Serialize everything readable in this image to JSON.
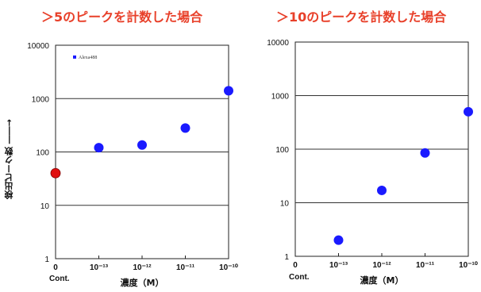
{
  "chart_data": [
    {
      "type": "scatter",
      "title": "＞5のピークを計数した場合",
      "ylabel": "検出ピーク数 ――→",
      "xlabel": "濃度（M）",
      "yscale": "log",
      "ylim": [
        1,
        10000
      ],
      "yticks": [
        "1",
        "10",
        "100",
        "1000",
        "10000"
      ],
      "categories": [
        "0",
        "10⁻¹³",
        "10⁻¹²",
        "10⁻¹¹",
        "10⁻¹⁰"
      ],
      "x_extra_label": "Cont.",
      "legend": {
        "label": "Alexa488",
        "placement": "top-left",
        "color": "#1a1aff"
      },
      "points": [
        {
          "x": "0",
          "y": 40,
          "color": "#e01010"
        },
        {
          "x": "10⁻¹³",
          "y": 120,
          "color": "#1a1aff"
        },
        {
          "x": "10⁻¹²",
          "y": 135,
          "color": "#1a1aff"
        },
        {
          "x": "10⁻¹¹",
          "y": 280,
          "color": "#1a1aff"
        },
        {
          "x": "10⁻¹⁰",
          "y": 1400,
          "color": "#1a1aff"
        }
      ]
    },
    {
      "type": "scatter",
      "title": "＞10のピークを計数した場合",
      "xlabel": "濃度（M）",
      "yscale": "log",
      "ylim": [
        1,
        10000
      ],
      "yticks": [
        "1",
        "10",
        "100",
        "1000",
        "10000"
      ],
      "categories": [
        "0",
        "10⁻¹³",
        "10⁻¹²",
        "10⁻¹¹",
        "10⁻¹⁰"
      ],
      "x_extra_label": "Cont.",
      "points": [
        {
          "x": "10⁻¹³",
          "y": 2,
          "color": "#1a1aff"
        },
        {
          "x": "10⁻¹²",
          "y": 17,
          "color": "#1a1aff"
        },
        {
          "x": "10⁻¹¹",
          "y": 85,
          "color": "#1a1aff"
        },
        {
          "x": "10⁻¹⁰",
          "y": 500,
          "color": "#1a1aff"
        }
      ]
    }
  ]
}
